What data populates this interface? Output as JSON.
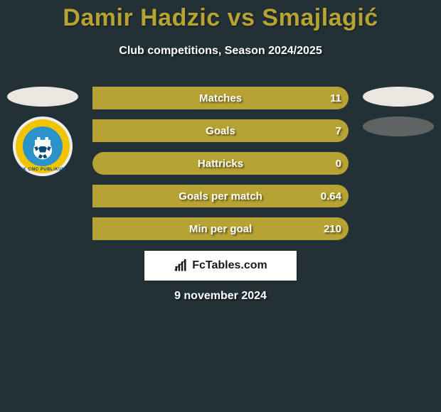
{
  "background_color": "#223135",
  "title": "Damir Hadzic vs Smajlagić",
  "title_color": "#b7a334",
  "title_fontsize": 34,
  "subtitle": "Club competitions, Season 2024/2025",
  "subtitle_color": "#ffffff",
  "subtitle_fontsize": 16,
  "date": "9 november 2024",
  "date_color": "#ffffff",
  "brand": {
    "text": "FcTables.com",
    "bg": "#ffffff",
    "border": "#1a1a1a",
    "icon_color": "#1a1a1a"
  },
  "players": {
    "left": {
      "ellipse_color": "#ebe6e0",
      "club_badge_text": "NK CMC PUBLIKUM"
    },
    "right": {
      "ellipse_colors": [
        "#ebe6e0",
        "#5f6364"
      ]
    }
  },
  "bar_style": {
    "height": 32,
    "radius": 16,
    "gap": 14,
    "text_color": "#ffffff",
    "label_fontsize": 15,
    "value_fontsize": 15,
    "shadow": "2px 2px 2px rgba(0,0,0,0.55)"
  },
  "bar_colors": {
    "left": "#b7a334",
    "right": "#b7a334"
  },
  "bars": [
    {
      "label": "Matches",
      "value_left": "",
      "value_right": "11",
      "split_left_pct": 0,
      "split_right_pct": 100
    },
    {
      "label": "Goals",
      "value_left": "",
      "value_right": "7",
      "split_left_pct": 0,
      "split_right_pct": 100
    },
    {
      "label": "Hattricks",
      "value_left": "",
      "value_right": "0",
      "split_left_pct": 50,
      "split_right_pct": 50
    },
    {
      "label": "Goals per match",
      "value_left": "",
      "value_right": "0.64",
      "split_left_pct": 0,
      "split_right_pct": 100
    },
    {
      "label": "Min per goal",
      "value_left": "",
      "value_right": "210",
      "split_left_pct": 0,
      "split_right_pct": 100
    }
  ]
}
